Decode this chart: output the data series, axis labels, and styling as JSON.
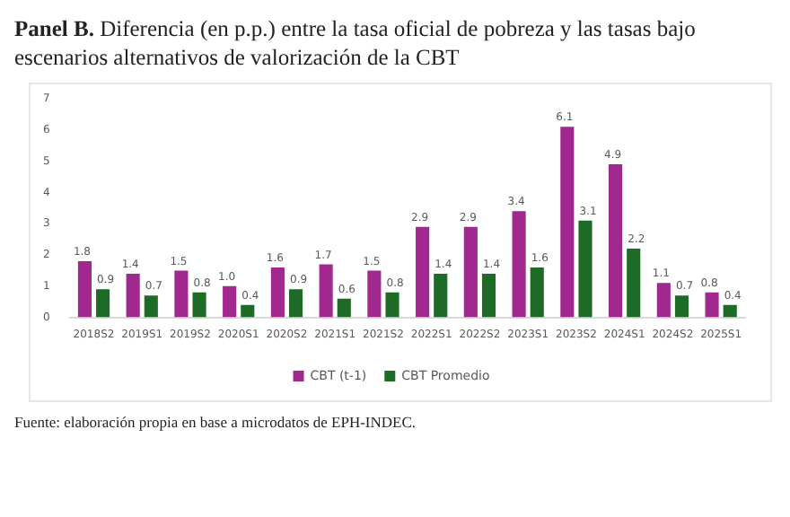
{
  "chart_data": {
    "type": "bar",
    "title": "Panel B. Diferencia (en p.p.) entre la tasa oficial de pobreza y las tasas bajo escenarios alternativos de valorización de la CBT",
    "categories": [
      "2018S2",
      "2019S1",
      "2019S2",
      "2020S1",
      "2020S2",
      "2021S1",
      "2021S2",
      "2022S1",
      "2022S2",
      "2023S1",
      "2023S2",
      "2024S1",
      "2024S2",
      "2025S1"
    ],
    "series": [
      {
        "name": "CBT (t-1)",
        "color": "#a0288f",
        "values": [
          1.8,
          1.4,
          1.5,
          1.0,
          1.6,
          1.7,
          1.5,
          2.9,
          2.9,
          3.4,
          6.1,
          4.9,
          1.1,
          0.8
        ],
        "value_labels": [
          "1.8",
          "1.4",
          "1.5",
          "1.0",
          "1.6",
          "1.7",
          "1.5",
          "2.9",
          "2.9",
          "3.4",
          "6.1",
          "4.9",
          "1.1",
          "0.8"
        ]
      },
      {
        "name": "CBT Promedio",
        "color": "#1e6b27",
        "values": [
          0.9,
          0.7,
          0.8,
          0.4,
          0.9,
          0.6,
          0.8,
          1.4,
          1.4,
          1.6,
          3.1,
          2.2,
          0.7,
          0.4
        ],
        "value_labels": [
          "0.9",
          "0.7",
          "0.8",
          "0.4",
          "0.9",
          "0.6",
          "0.8",
          "1.4",
          "1.4",
          "1.6",
          "3.1",
          "2.2",
          "0.7",
          "0.4"
        ]
      }
    ],
    "ylim": [
      0,
      7
    ],
    "yticks": [
      0,
      1,
      2,
      3,
      4,
      5,
      6,
      7
    ],
    "grid": false,
    "legend": "bottom",
    "annotations": [
      "Fuente: elaboración propia en base a microdatos de EPH-INDEC."
    ]
  }
}
